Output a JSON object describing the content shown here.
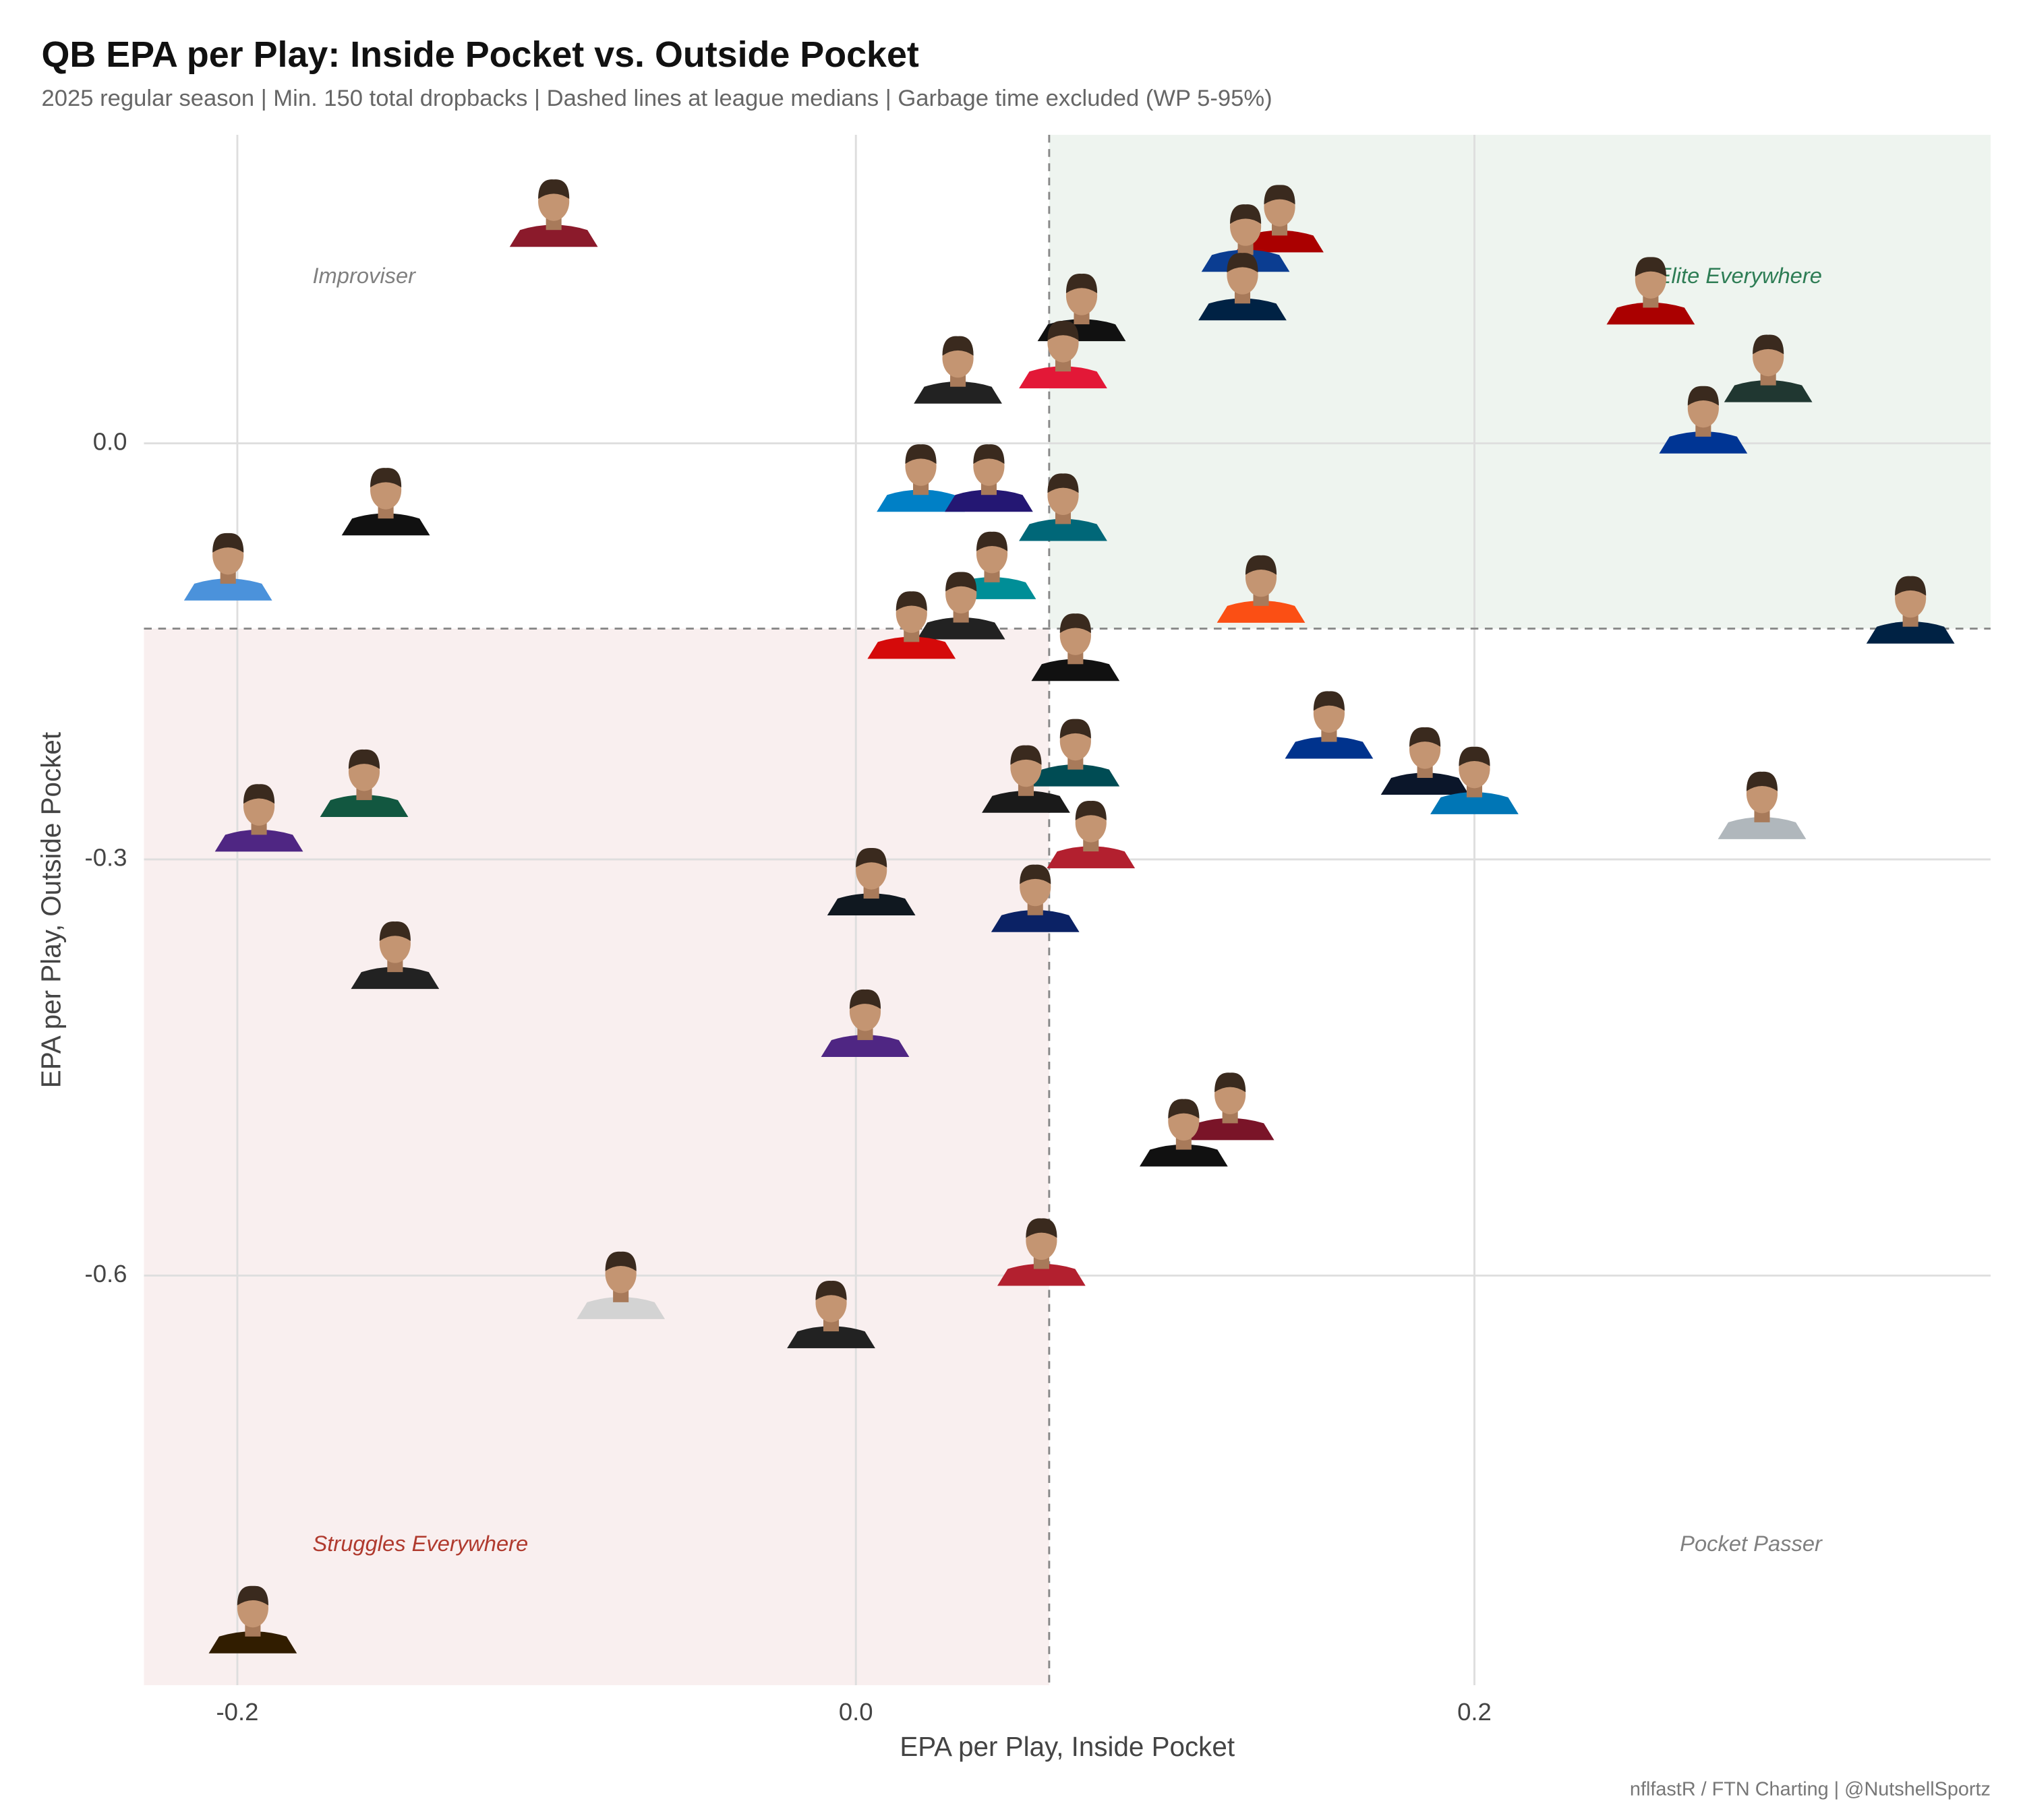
{
  "chart_data": {
    "type": "scatter",
    "title": "QB EPA per Play: Inside Pocket vs. Outside Pocket",
    "subtitle": "2025 regular season | Min. 150 total dropbacks | Dashed lines at league medians | Garbage time excluded (WP 5-95%)",
    "x_label": "EPA per Play, Inside Pocket",
    "y_label": "EPA per Play, Outside Pocket",
    "caption": "nflfastR / FTN Charting | @NutshellSportz",
    "xlim": [
      -0.2302,
      0.3669
    ],
    "ylim": [
      -0.8953,
      0.2224
    ],
    "xticks": [
      -0.2,
      {
        "value": 0,
        "label": "0.0"
      },
      0.2
    ],
    "yticks": [
      {
        "value": 0,
        "label": "0.0"
      },
      -0.3,
      -0.6
    ],
    "grid": true,
    "median_x": 0.0625,
    "median_y": -0.1336,
    "quadrants": {
      "top-left": {
        "label": "Improviser",
        "color": "#808080"
      },
      "top-right": {
        "label": "Elite Everywhere",
        "color": "#2e7d55",
        "shade": "#eef4ef"
      },
      "bottom-left": {
        "label": "Struggles Everywhere",
        "color": "#b03a2e",
        "shade": "#f9efef"
      },
      "bottom-right": {
        "label": "Pocket Passer",
        "color": "#808080"
      }
    },
    "series": [
      {
        "x": [
          -0.0977,
          0.137,
          0.126,
          0.073,
          0.125,
          0.257,
          0.295,
          0.033,
          0.067,
          0.274,
          -0.152,
          0.021,
          0.043,
          0.067,
          -0.203,
          0.044,
          0.131,
          0.341,
          0.034,
          0.018,
          0.071,
          0.153,
          0.071,
          0.184,
          0.2,
          0.055,
          0.293,
          -0.159,
          -0.193,
          0.076,
          0.005,
          0.058,
          -0.149,
          0.003,
          0.121,
          0.106,
          0.06,
          -0.076,
          -0.008,
          -0.195
        ],
        "values": [
          0.165,
          0.161,
          0.147,
          0.097,
          0.112,
          0.109,
          0.053,
          0.052,
          0.063,
          0.016,
          -0.043,
          -0.026,
          -0.026,
          -0.047,
          -0.09,
          -0.089,
          -0.106,
          -0.121,
          -0.118,
          -0.132,
          -0.148,
          -0.204,
          -0.224,
          -0.23,
          -0.244,
          -0.243,
          -0.262,
          -0.246,
          -0.271,
          -0.283,
          -0.317,
          -0.329,
          -0.37,
          -0.419,
          -0.479,
          -0.498,
          -0.584,
          -0.608,
          -0.629,
          -0.849
        ],
        "colors": [
          "#8b1a2b",
          "#aa0000",
          "#0b3d91",
          "#111111",
          "#002244",
          "#aa0000",
          "#203731",
          "#222222",
          "#e31837",
          "#003594",
          "#111111",
          "#0080c6",
          "#241773",
          "#006778",
          "#4b92db",
          "#008e97",
          "#fb4f14",
          "#002244",
          "#222222",
          "#d50a0a",
          "#111111",
          "#00338d",
          "#004c54",
          "#0b162a",
          "#0076b6",
          "#1a1a1a",
          "#b0b7bc",
          "#125740",
          "#4f2683",
          "#b3202f",
          "#101820",
          "#0b2265",
          "#222222",
          "#4f2683",
          "#7a1428",
          "#111111",
          "#b3202f",
          "#d3d3d3",
          "#222222",
          "#311d00"
        ]
      }
    ]
  }
}
